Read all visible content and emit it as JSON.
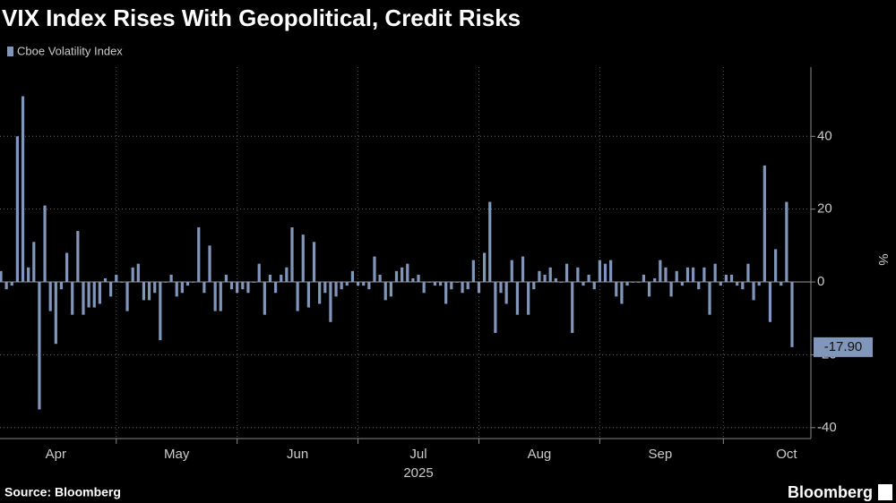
{
  "chart_data": {
    "type": "bar",
    "title": "VIX Index Rises With Geopolitical, Credit Risks",
    "xlabel": "2025",
    "y_unit": "%",
    "source": "Source: Bloomberg",
    "brand": "Bloomberg",
    "grid": true,
    "legend": "top-left",
    "categories": [
      null,
      null,
      null,
      null,
      null,
      null,
      null,
      null,
      null,
      null,
      "Apr",
      null,
      null,
      null,
      null,
      null,
      null,
      null,
      null,
      null,
      null,
      null,
      null,
      null,
      null,
      null,
      null,
      null,
      null,
      null,
      null,
      null,
      "May",
      null,
      null,
      null,
      null,
      null,
      null,
      null,
      null,
      null,
      null,
      null,
      null,
      null,
      null,
      null,
      null,
      null,
      null,
      null,
      null,
      null,
      "Jun",
      null,
      null,
      null,
      null,
      null,
      null,
      null,
      null,
      null,
      null,
      null,
      null,
      null,
      null,
      null,
      null,
      null,
      null,
      null,
      null,
      null,
      "Jul",
      null,
      null,
      null,
      null,
      null,
      null,
      null,
      null,
      null,
      null,
      null,
      null,
      null,
      null,
      null,
      null,
      null,
      null,
      null,
      null,
      null,
      "Aug",
      null,
      null,
      null,
      null,
      null,
      null,
      null,
      null,
      null,
      null,
      null,
      null,
      null,
      null,
      null,
      null,
      null,
      null,
      null,
      null,
      null,
      "Sep",
      null,
      null,
      null,
      null,
      null,
      null,
      null,
      null,
      null,
      null,
      null,
      null,
      null,
      null,
      null,
      null,
      null,
      null,
      null,
      null,
      null,
      null,
      "Oct",
      null
    ],
    "series": [
      {
        "name": "Cboe Volatility Index",
        "color": "#8196bb",
        "values": [
          3,
          -2,
          -1,
          40,
          51,
          4,
          11,
          -35,
          21,
          -8,
          -17,
          -2,
          8,
          -9,
          14,
          -9,
          -7,
          -7,
          -6,
          1,
          -4,
          2,
          0,
          -8,
          4,
          5,
          -5,
          -5,
          -3,
          -16,
          0,
          2,
          -4,
          -3,
          -1,
          0,
          15,
          -3,
          10,
          -8,
          -8,
          2,
          -2,
          -3,
          -2,
          -3,
          0,
          5,
          -9,
          2,
          -3,
          2,
          4,
          15,
          -8,
          13,
          -7,
          11,
          -6,
          -3,
          -11,
          -4,
          -2,
          -1,
          3,
          -1,
          -1,
          -2,
          7,
          2,
          -5,
          -4,
          3,
          4,
          5,
          1,
          2,
          -3,
          0,
          -1,
          -1,
          -6,
          -2,
          0,
          -3,
          -2,
          6,
          -3,
          8,
          22,
          -14,
          -3,
          -6,
          6,
          -9,
          7,
          -9,
          -2,
          3,
          2,
          4,
          1,
          0,
          5,
          -14,
          4,
          -1,
          2,
          -2,
          6,
          5,
          6,
          -4,
          -6,
          -1,
          0,
          0,
          2,
          -4,
          1,
          6,
          4,
          -4,
          3,
          -1,
          4,
          4,
          -2,
          4,
          -9,
          5,
          -1,
          2,
          2,
          -1,
          -2,
          5,
          -5,
          -1,
          32,
          -11,
          9,
          -1,
          22,
          -17.9
        ],
        "value_labels": [
          null,
          null,
          null,
          null,
          null,
          null,
          null,
          null,
          null,
          null,
          null,
          null,
          null,
          null,
          null,
          null,
          null,
          null,
          null,
          null,
          null,
          null,
          null,
          null,
          null,
          null,
          null,
          null,
          null,
          null,
          null,
          null,
          null,
          null,
          null,
          null,
          null,
          null,
          null,
          null,
          null,
          null,
          null,
          null,
          null,
          null,
          null,
          null,
          null,
          null,
          null,
          null,
          null,
          null,
          null,
          null,
          null,
          null,
          null,
          null,
          null,
          null,
          null,
          null,
          null,
          null,
          null,
          null,
          null,
          null,
          null,
          null,
          null,
          null,
          null,
          null,
          null,
          null,
          null,
          null,
          null,
          null,
          null,
          null,
          null,
          null,
          null,
          null,
          null,
          null,
          null,
          null,
          null,
          null,
          null,
          null,
          null,
          null,
          null,
          null,
          null,
          null,
          null,
          null,
          null,
          null,
          null,
          null,
          null,
          null,
          null,
          null,
          null,
          null,
          null,
          null,
          null,
          null,
          null,
          null,
          null,
          null,
          null,
          null,
          null,
          null,
          null,
          null,
          null,
          null,
          null,
          null,
          null,
          null,
          null,
          null,
          null,
          null,
          null,
          null,
          null,
          null,
          null,
          null,
          "-17.90"
        ]
      }
    ],
    "ylim": [
      -43,
      59
    ],
    "yticks": [
      -40,
      -20,
      0,
      20,
      40
    ]
  }
}
